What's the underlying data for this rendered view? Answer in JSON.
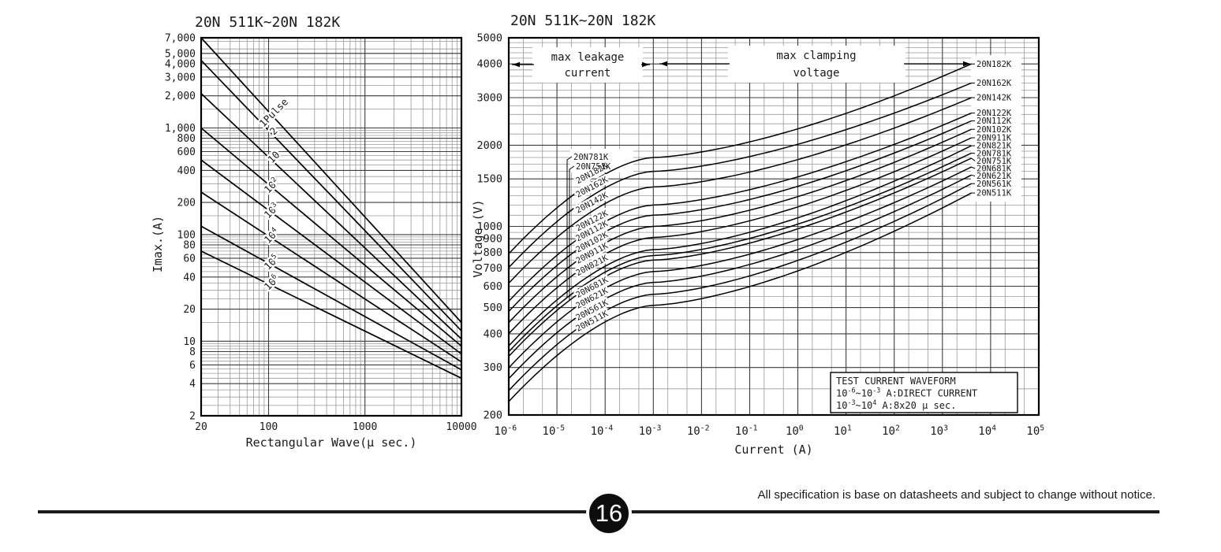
{
  "page": {
    "footer": {
      "page_number": "16",
      "disclaimer": "All specification is base on datasheets and subject to change without notice.",
      "line_color": "#1b1b1b",
      "badge_color": "#0d0d0d",
      "badge_text_color": "#ffffff"
    }
  },
  "colors": {
    "curve": "#000000",
    "grid_minor": "#9a9a9a",
    "grid_major": "#3c3c3c",
    "frame": "#000000",
    "text": "#1a1a1a",
    "background": "#ffffff"
  },
  "chart_data": [
    {
      "id": "pulse-derating",
      "type": "line",
      "title": "20N 511K~20N 182K",
      "xlabel": "Rectangular Wave(μ sec.)",
      "ylabel": "Imax.(A)",
      "x_scale": "log",
      "y_scale": "log",
      "xlim": [
        20,
        10000
      ],
      "ylim": [
        2,
        7000
      ],
      "x_ticks": [
        "20",
        "100",
        "1000",
        "10000"
      ],
      "x_tick_values": [
        20,
        100,
        1000,
        10000
      ],
      "y_ticks": [
        "7,000",
        "5,000",
        "4,000",
        "3,000",
        "2,000",
        "1,000",
        "800",
        "600",
        "400",
        "200",
        "100",
        "80",
        "60",
        "40",
        "20",
        "10",
        "8",
        "6",
        "4",
        "2"
      ],
      "y_tick_values": [
        7000,
        5000,
        4000,
        3000,
        2000,
        1000,
        800,
        600,
        400,
        200,
        100,
        80,
        60,
        40,
        20,
        10,
        8,
        6,
        4,
        2
      ],
      "grid": true,
      "series": [
        {
          "label": "1Pulse",
          "points": [
            [
              20,
              7000
            ],
            [
              10000,
              15
            ]
          ]
        },
        {
          "label": "2",
          "points": [
            [
              20,
              4300
            ],
            [
              10000,
              12.5
            ]
          ]
        },
        {
          "label": "10",
          "points": [
            [
              20,
              2100
            ],
            [
              10000,
              10.5
            ]
          ]
        },
        {
          "label": "10^{2}",
          "points": [
            [
              20,
              1000
            ],
            [
              10000,
              9
            ]
          ]
        },
        {
          "label": "10^{3}",
          "points": [
            [
              20,
              500
            ],
            [
              10000,
              7.6
            ]
          ]
        },
        {
          "label": "10^{4}",
          "points": [
            [
              20,
              250
            ],
            [
              10000,
              6.4
            ]
          ]
        },
        {
          "label": "10^{5}",
          "points": [
            [
              20,
              120
            ],
            [
              10000,
              5.4
            ]
          ]
        },
        {
          "label": "10^{6}",
          "points": [
            [
              20,
              70
            ],
            [
              10000,
              4.5
            ]
          ]
        }
      ]
    },
    {
      "id": "vi-characteristics",
      "type": "line",
      "title": "20N 511K~20N 182K",
      "xlabel": "Current (A)",
      "ylabel": "Voltage (V)",
      "x_scale": "log",
      "y_scale": "log",
      "xlim_exponents": [
        -6,
        5
      ],
      "ylim": [
        200,
        5000
      ],
      "x_ticks": [
        "10^{-6}",
        "10^{-5}",
        "10^{-4}",
        "10^{-3}",
        "10^{-2}",
        "10^{-1}",
        "10^{0}",
        "10^{1}",
        "10^{2}",
        "10^{3}",
        "10^{4}",
        "10^{5}"
      ],
      "y_ticks": [
        "5000",
        "4000",
        "3000",
        "2000",
        "1500",
        "1000",
        "900",
        "800",
        "700",
        "600",
        "500",
        "400",
        "300",
        "200"
      ],
      "y_tick_values": [
        5000,
        4000,
        3000,
        2000,
        1500,
        1000,
        900,
        800,
        700,
        600,
        500,
        400,
        300,
        200
      ],
      "grid": true,
      "annotations": {
        "leakage_lines": [
          "max leakage",
          "current"
        ],
        "clamping_lines": [
          "max clamping",
          "voltage"
        ],
        "test_box_lines": [
          "TEST CURRENT WAVEFORM",
          "10^{-6}~10^{-3} A:DIRECT CURRENT",
          "10^{-3}~10^{4} A:8x20 μ sec."
        ]
      },
      "models": [
        {
          "name": "20N511K",
          "v_nominal": 510,
          "v_clamp": 1330
        },
        {
          "name": "20N561K",
          "v_nominal": 560,
          "v_clamp": 1440
        },
        {
          "name": "20N621K",
          "v_nominal": 620,
          "v_clamp": 1550
        },
        {
          "name": "20N681K",
          "v_nominal": 680,
          "v_clamp": 1660
        },
        {
          "name": "20N751K",
          "v_nominal": 750,
          "v_clamp": 1790
        },
        {
          "name": "20N781K",
          "v_nominal": 780,
          "v_clamp": 1870
        },
        {
          "name": "20N821K",
          "v_nominal": 820,
          "v_clamp": 1990
        },
        {
          "name": "20N911K",
          "v_nominal": 910,
          "v_clamp": 2130
        },
        {
          "name": "20N102K",
          "v_nominal": 1000,
          "v_clamp": 2290
        },
        {
          "name": "20N112K",
          "v_nominal": 1100,
          "v_clamp": 2460
        },
        {
          "name": "20N122K",
          "v_nominal": 1200,
          "v_clamp": 2630
        },
        {
          "name": "20N142K",
          "v_nominal": 1400,
          "v_clamp": 3000
        },
        {
          "name": "20N162K",
          "v_nominal": 1600,
          "v_clamp": 3400
        },
        {
          "name": "20N182K",
          "v_nominal": 1800,
          "v_clamp": 4000
        }
      ],
      "start_multiplier": 0.44
    }
  ]
}
